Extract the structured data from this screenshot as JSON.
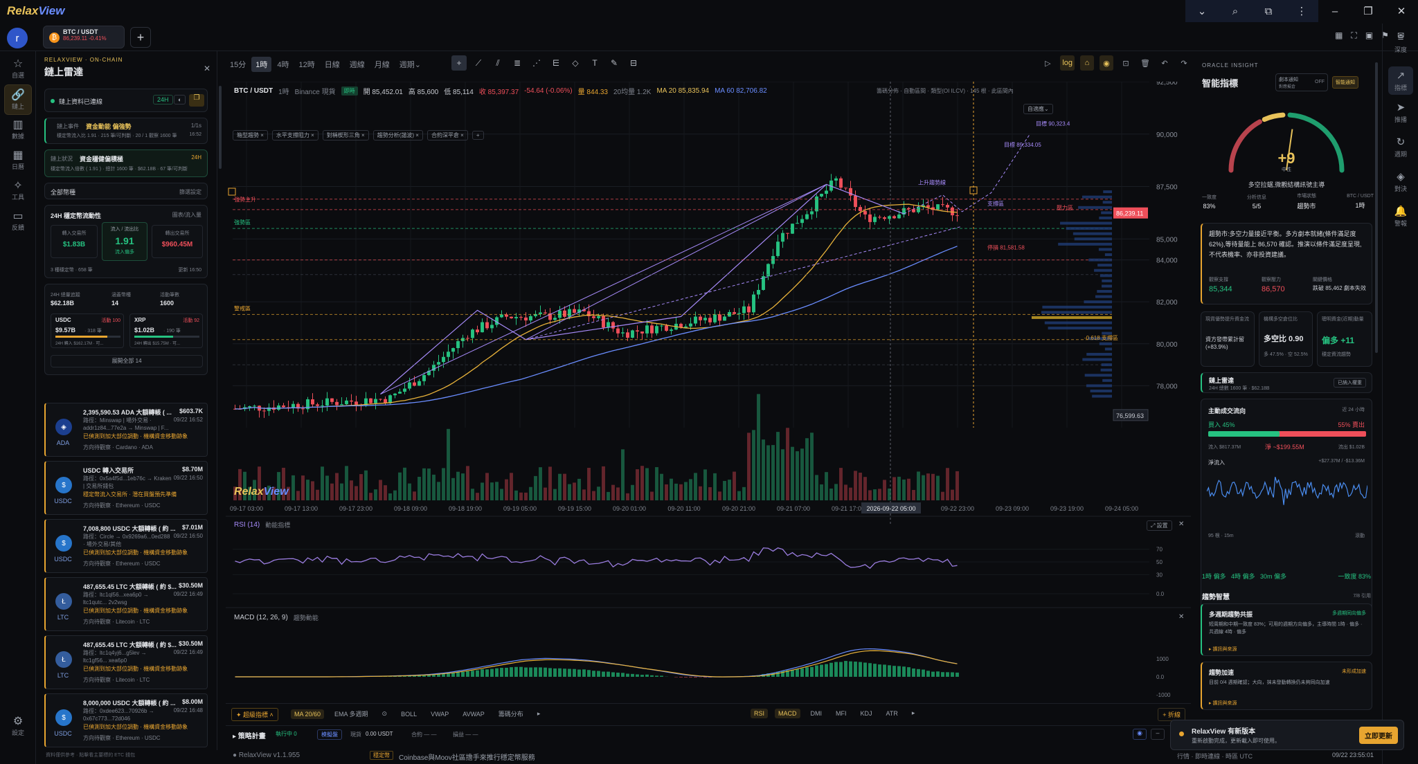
{
  "app": {
    "name_a": "Relax",
    "name_b": "View",
    "avatar": "r"
  },
  "window": {
    "icons": [
      "chevron-down-icon",
      "search-icon",
      "extension-icon",
      "more-icon",
      "minimize-icon",
      "restore-icon",
      "close-icon"
    ],
    "glyphs": [
      "⌄",
      "⌕",
      "⧉",
      "⋮",
      "–",
      "❐",
      "✕"
    ]
  },
  "tab": {
    "pair": "BTC / USDT",
    "price_line": "86,239.11  -0.41%",
    "add": "+"
  },
  "rail": [
    {
      "icon": "star-icon",
      "glyph": "☆",
      "label": "自選"
    },
    {
      "icon": "link-icon",
      "glyph": "🔗",
      "label": "鏈上"
    },
    {
      "icon": "chart-icon",
      "glyph": "▥",
      "label": "數據"
    },
    {
      "icon": "calendar-icon",
      "glyph": "▦",
      "label": "日曆"
    },
    {
      "icon": "tools-icon",
      "glyph": "✧",
      "label": "工具"
    },
    {
      "icon": "feedback-icon",
      "glyph": "▭",
      "label": "反饋"
    }
  ],
  "settings": {
    "glyph": "⚙",
    "label": "設定"
  },
  "onchain": {
    "kicker": "RELAXVIEW · ON-CHAIN",
    "title": "鏈上雷達",
    "status": "鏈上資料已連線",
    "btn_24h": "24H",
    "alert1_title": "資金動能 偏強勢",
    "alert1_pre": "鏈上事件",
    "alert1_count": "1/1s",
    "alert1_desc": "穩定幣流入比 1.91 · 215 筆/可判斷 · 20 / 1 觀察 1600 筆",
    "alert1_time": "16:52",
    "alert2_pre": "鏈上狀況",
    "alert2_title": "資金穩健偏積極",
    "alert2_tag": "24H",
    "alert2_desc": "穩定幣流入倍數 ( 1.91 ) · 總計 1600 筆 · $62.18B · 67 筆/可判斷",
    "filter": "全部幣種",
    "filter_btn": "篩選設定",
    "flow_title": "24H 穩定幣流動性",
    "flow_link": "圖表/流入量",
    "in_label": "轉入交易所",
    "in_val": "$1.83B",
    "ratio_label": "流入 / 流出比",
    "ratio_val": "1.91",
    "ratio_sub": "流入偏多",
    "out_label": "轉出交易所",
    "out_val": "$960.45M",
    "flow_foot_l": "3 種穩定幣 · 658 筆",
    "flow_foot_r": "更新 16:50",
    "vol_label": "24H 總量追蹤",
    "vol_val": "$62.18B",
    "chain_label": "涵蓋幣種",
    "chain_val": "14",
    "tx_label": "活動筆數",
    "tx_val": "1600",
    "c1_name": "USDC",
    "c1_tag": "活動 100",
    "c1_val": "$9.57B",
    "c1_sub": "· 318 筆",
    "c1_foot": "24H 轉入 $162.17M · 可...",
    "c2_name": "XRP",
    "c2_tag": "活動 92",
    "c2_val": "$1.02B",
    "c2_sub": "· 190 筆",
    "c2_foot": "24H 轉出 $15.75M · 可...",
    "expand": "展開全部 14",
    "whales": [
      {
        "title": "2,395,590.53 ADA 大額轉帳 ( ...",
        "amount": "$603.7K",
        "time": "09/22 16:52",
        "desc": "路徑：Minswap | 場外交易 · addr1z84...77e2a → Minswap | F...",
        "tag": "已偵測到加大部位調動 · 機構資金移動跡象",
        "foot": "方向待觀察 · Cardano · ADA",
        "coin": "ADA",
        "color": "#1c3f8f"
      },
      {
        "title": "USDC 轉入交易所",
        "amount": "$8.70M",
        "time": "09/22 16:50",
        "desc": "路徑：0x5a4f5d...1eb76c → Kraken | 交易所錢包",
        "tag": "穩定幣流入交易所 · 潛在買盤預先準備",
        "foot": "方向待觀察 · Ethereum · USDC",
        "coin": "USDC",
        "color": "#2775ca"
      },
      {
        "title": "7,008,800 USDC 大額轉帳 ( 約 ...",
        "amount": "$7.01M",
        "time": "09/22 16:50",
        "desc": "路徑：Circle → 0x9269a6...0ed288 · 場外交易/其他",
        "tag": "已偵測到加大部位調動 · 機構資金移動跡象",
        "foot": "方向待觀察 · Ethereum · USDC",
        "coin": "USDC",
        "color": "#2775ca"
      },
      {
        "title": "487,655.45 LTC 大額轉帳 ( 約 $...",
        "amount": "$30.50M",
        "time": "09/22 16:49",
        "desc": "路徑：ltc1ql56...xea6p0 → ltc1qutc... 2v2wsg",
        "tag": "已偵測到加大部位調動 · 機構資金移動跡象",
        "foot": "方向待觀察 · Litecoin · LTC",
        "coin": "LTC",
        "color": "#345d9d"
      },
      {
        "title": "487,655.45 LTC 大額轉帳 ( 約 $...",
        "amount": "$30.50M",
        "time": "09/22 16:49",
        "desc": "路徑：ltc1q4yj6...g5lev → ltc1gf56... xea6p0",
        "tag": "已偵測到加大部位調動 · 機構資金移動跡象",
        "foot": "方向待觀察 · Litecoin · LTC",
        "coin": "LTC",
        "color": "#345d9d"
      },
      {
        "title": "8,000,000 USDC 大額轉帳 ( 約 ...",
        "amount": "$8.00M",
        "time": "09/22 16:48",
        "desc": "路徑：0xdee623...70926b → 0x67c773...72d046",
        "tag": "已偵測到加大部位調動 · 機構資金移動跡象",
        "foot": "方向待觀察 · Ethereum · USDC",
        "coin": "USDC",
        "color": "#2775ca"
      }
    ],
    "footer": "資料僅供參考 · 點擊看主要標的 ETC 錢包"
  },
  "toolbar": {
    "timeframes": [
      "15分",
      "1時",
      "4時",
      "12時",
      "日線",
      "週線",
      "月線",
      "週期⌄"
    ],
    "active_tf": 1,
    "tools": [
      {
        "icon": "crosshair-icon",
        "glyph": "+"
      },
      {
        "icon": "trendline-icon",
        "glyph": "⟋"
      },
      {
        "icon": "channel-icon",
        "glyph": "⫽"
      },
      {
        "icon": "fib-icon",
        "glyph": "≣"
      },
      {
        "icon": "fan-icon",
        "glyph": "⋰"
      },
      {
        "icon": "measure-icon",
        "glyph": "⋿"
      },
      {
        "icon": "ruler-icon",
        "glyph": "◇"
      },
      {
        "icon": "text-icon",
        "glyph": "T"
      },
      {
        "icon": "brush-icon",
        "glyph": "✎"
      },
      {
        "icon": "layout-icon",
        "glyph": "⊟"
      }
    ],
    "right": [
      {
        "icon": "play-icon",
        "glyph": "▷"
      },
      {
        "icon": "log-toggle",
        "glyph": "log"
      },
      {
        "icon": "magnet-icon",
        "glyph": "⌂"
      },
      {
        "icon": "eye-icon",
        "glyph": "◉"
      },
      {
        "icon": "lock-icon",
        "glyph": "⊡"
      },
      {
        "icon": "trash-icon",
        "glyph": "🗑"
      },
      {
        "icon": "undo-icon",
        "glyph": "↶"
      },
      {
        "icon": "redo-icon",
        "glyph": "↷"
      }
    ]
  },
  "legend": {
    "pair": "BTC / USDT",
    "tf": "1時",
    "exchange": "Binance 現貨",
    "badge": "即時",
    "o": "開 85,452.01",
    "h": "高 85,600",
    "l": "低 85,114",
    "c": "收 85,397.37",
    "chg": "-54.64 (-0.06%)",
    "vol": "量 844.33",
    "vol20": "20均量 1.2K",
    "ma20": "MA 20 85,835.94",
    "ma60": "MA 60 82,706.82",
    "right_info": "籌碼分佈 · 自動區間 · 類型(OI ILCV) · 145 根 · 此區間內",
    "auto_btn": "自適應⌄",
    "chips": [
      "箱型趨勢 ×",
      "水平支撐阻力 ×",
      "對稱楔形三角 ×",
      "趨勢分析(諧波) ×",
      "合約深平倉 ×",
      "+"
    ],
    "watermark_a": "Relax",
    "watermark_b": "View"
  },
  "chart_data": {
    "type": "candlestick",
    "price_ticks": [
      "92,500",
      "90,000",
      "87,500",
      "85,000",
      "84,000",
      "82,000",
      "80,000",
      "78,000"
    ],
    "y_range": [
      76000,
      92500
    ],
    "current_price": "86,239.11",
    "low_label": "76,599.63",
    "time_ticks": [
      "09-17 03:00",
      "09-17 13:00",
      "09-17 23:00",
      "09-18 09:00",
      "09-18 19:00",
      "09-19 05:00",
      "09-19 15:00",
      "09-20 01:00",
      "09-20 11:00",
      "09-20 21:00",
      "09-21 07:00",
      "09-21 17:00",
      "09-22 13:00",
      "09-22 23:00",
      "09-23 09:00",
      "09-23 19:00",
      "09-24 05:00"
    ],
    "crosshair_time": "2026-09-22 05:00",
    "annotations": {
      "target_high": "目標 90,323.4",
      "target_mid": "目標 89,334.05",
      "stop": "停損 81,581.58",
      "breakout": "上升趨勢線",
      "rebound": "壓力區",
      "support": "支撐區",
      "warn": "警戒區",
      "fib": "-0.618 支撐區",
      "zone_a": "強勢主升",
      "zone_b": "強勢區"
    }
  },
  "rsi": {
    "title": "RSI (14)",
    "sub": "動能指標",
    "ticks": [
      "70",
      "50",
      "30",
      "0.0"
    ],
    "close": "✕",
    "btn": "⤢ 設置"
  },
  "macd": {
    "title": "MACD (12, 26, 9)",
    "sub": "趨勢動能",
    "ticks": [
      "1000",
      "0.0",
      "-1000"
    ],
    "close": "✕"
  },
  "indbar": {
    "left_btn": "✦ 超級指標 ˄",
    "items": [
      "MA 20/60",
      "EMA 多週期",
      "⊙",
      "BOLL",
      "VWAP",
      "AVWAP",
      "籌碼分布",
      "▸"
    ],
    "active_left": 0,
    "right_items": [
      "RSI",
      "MACD",
      "DMI",
      "MFI",
      "KDJ",
      "ATR",
      "▸"
    ],
    "active_right": [
      0,
      1
    ],
    "fold": "+ 折線"
  },
  "strategy": {
    "title": "策略計畫",
    "status": "執行中 0",
    "badge": "模擬盤",
    "pos_label": "現貨",
    "pos_val": "0.00 USDT",
    "lev": "合約 — —",
    "pnl": "損益 — —"
  },
  "status": {
    "version": "RelaxView v1.1.955",
    "news_badge": "穩定幣",
    "news": "Coinbase與Moov社區擔手來推行穩定幣服務",
    "right": "行情 · 即時連線 · 時區 UTC",
    "clock": "09/22 23:55:01"
  },
  "oracle": {
    "kicker": "ORACLE INSIGHT",
    "title": "智能指標",
    "tog_label": "劇本通知",
    "tog_sub": "對應擬倉",
    "tog_state": "OFF",
    "notify_btn": "智能通知",
    "gauge_value": "+9",
    "gauge_label": "中性",
    "gauge_desc": "多空拉鋸,微觀結構訊號主導",
    "stats": [
      {
        "label": "一致度",
        "value": "83%"
      },
      {
        "label": "分析信息",
        "value": "5/5"
      },
      {
        "label": "市場狀態",
        "value": "趨勢市"
      },
      {
        "label": "BTC / USDT",
        "value": "1時"
      }
    ],
    "summary": "趨勢市:多空力量接近平衡。多方劇本就緒(條件滿足度 62%),等待量能上 86,570 確認。推演以條件滿足度呈現,不代表機率、亦非投資建議。",
    "entry_label": "觀察支撐",
    "entry_val": "85,344",
    "res_label": "觀察壓力",
    "res_val": "86,570",
    "key_label": "關鍵價格",
    "key_val": "跌破 85,462 劇本失效",
    "m1_label": "現貨優勢提升資金流",
    "m1_val": "資方發帶累計留(+83.9%)",
    "m2_label": "機構多空倉位比",
    "m2_val": "多空比 0.90",
    "m2_sub": "多 47.5% · 空 52.5%",
    "m3_label": "聰明資金(近期)動量",
    "m3_val": "偏多 +11",
    "m3_sub": "穩定資流趨勢",
    "radar_title": "鏈上雷達",
    "radar_sub": "24H 總數 1600 筆 · $62.18B",
    "radar_btn": "已納入權重",
    "flow_title": "主動成交流向",
    "flow_time": "近 24 小時",
    "buy_label": "買入 45%",
    "sell_label": "55% 賣出",
    "buy_pct": 45,
    "buy_amt": "流入 $817.37M",
    "net": "淨 ~$199.55M",
    "sell_amt": "流出 $1.02B",
    "net_in_label": "淨流入",
    "net_range": "+$27.37M / -$13.36M",
    "spark_foot_l": "95 根 · 15m",
    "spark_foot_r": "滾動",
    "consensus": "1時 偏多   4時 偏多   30m 偏多",
    "consensus_r": "一致度 83%",
    "trend_title": "趨勢智慧",
    "trend_count": "7/8 引用",
    "t1_title": "多週期趨勢共振",
    "t1_tag": "多週期同向偏多",
    "t1_desc": "短周期和中期一致度 83%；可用的週期方向偏多，主導時間 1時 · 偏多 · 共週線 4時 · 偏多",
    "t1_link": "▸ 擴訊與來源",
    "t2_title": "趨勢加速",
    "t2_tag": "未形成加速",
    "t2_desc": "目前 0/4 週期確認；大向，抹未發動轉換仍未夠同向加速",
    "t2_link": "▸ 擴訊與來源"
  },
  "rrail": [
    {
      "icon": "menu-icon",
      "glyph": "≡",
      "label": "深度"
    },
    {
      "icon": "trend-icon",
      "glyph": "↗",
      "label": "指標"
    },
    {
      "icon": "send-icon",
      "glyph": "➤",
      "label": "推播"
    },
    {
      "icon": "refresh-icon",
      "glyph": "↻",
      "label": "週期"
    },
    {
      "icon": "layers-icon",
      "glyph": "◈",
      "label": "對決"
    },
    {
      "icon": "bell-icon",
      "glyph": "🔔",
      "label": "警報"
    }
  ],
  "toast": {
    "title": "RelaxView 有新版本",
    "desc": "重新啟動完成，更新載入即可使用。",
    "btn": "立即更新"
  }
}
